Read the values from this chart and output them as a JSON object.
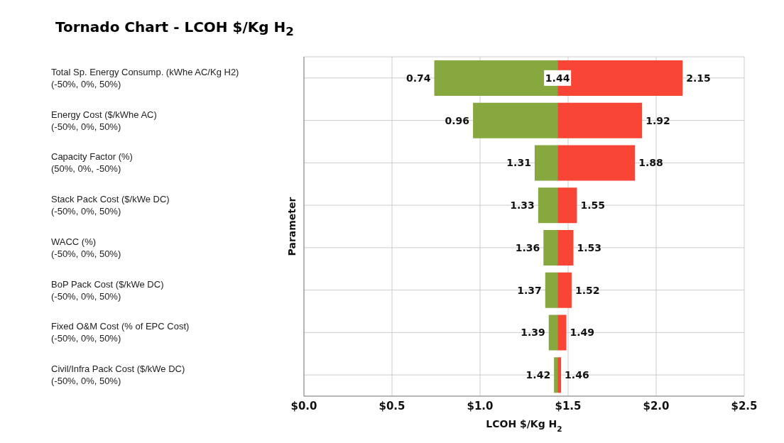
{
  "chart_data": {
    "type": "bar",
    "orientation": "horizontal",
    "title": "Tornado Chart  -  LCOH $/Kg H$_{2}$",
    "xlabel": "LCOH $/Kg H$_{2}$",
    "ylabel": "Parameter",
    "categories": [
      "Total Sp. Energy Consump. (kWhe AC/Kg H2)\n(-50%, 0%, 50%)",
      "Energy Cost ($/kWhe AC)\n(-50%, 0%, 50%)",
      "Capacity Factor (%)\n(50%, 0%, -50%)",
      "Stack Pack Cost ($/kWe DC)\n(-50%, 0%, 50%)",
      "WACC (%)\n(-50%, 0%, 50%)",
      "BoP Pack Cost ($/kWe DC)\n(-50%, 0%, 50%)",
      "Fixed O&M Cost (% of EPC Cost)\n(-50%, 0%, 50%)",
      "Civil/Infra Pack Cost ($/kWe DC)\n(-50%, 0%, 50%)"
    ],
    "series": [
      {
        "color": "#86a83f",
        "base": [
          0.74,
          0.96,
          1.31,
          1.33,
          1.36,
          1.37,
          1.39,
          1.42
        ],
        "values": [
          0.7,
          0.48,
          0.13,
          0.11,
          0.08,
          0.07,
          0.05,
          0.02
        ]
      },
      {
        "color": "#f84535",
        "base": [
          1.44,
          1.44,
          1.44,
          1.44,
          1.44,
          1.44,
          1.44,
          1.44
        ],
        "values": [
          0.71,
          0.48,
          0.44,
          0.11,
          0.09,
          0.08,
          0.05,
          0.02
        ]
      }
    ],
    "annotations": [
      {
        "text": "1.44",
        "x": 1.44,
        "y": "Total Sp. Energy Consump. (kWhe AC/Kg H2)\n(-50%, 0%, 50%)"
      },
      {
        "text": "0.74",
        "x": 0.74,
        "y": "Total Sp. Energy Consump. (kWhe AC/Kg H2)\n(-50%, 0%, 50%)"
      },
      {
        "text": "2.15",
        "x": 2.15,
        "y": "Total Sp. Energy Consump. (kWhe AC/Kg H2)\n(-50%, 0%, 50%)"
      },
      {
        "text": "0.96",
        "x": 0.96,
        "y": "Energy Cost ($/kWhe AC)\n(-50%, 0%, 50%)"
      },
      {
        "text": "1.92",
        "x": 1.92,
        "y": "Energy Cost ($/kWhe AC)\n(-50%, 0%, 50%)"
      },
      {
        "text": "1.31",
        "x": 1.31,
        "y": "Capacity Factor (%)\n(50%, 0%, -50%)"
      },
      {
        "text": "1.88",
        "x": 1.88,
        "y": "Capacity Factor (%)\n(50%, 0%, -50%)"
      },
      {
        "text": "1.33",
        "x": 1.33,
        "y": "Stack Pack Cost ($/kWe DC)\n(-50%, 0%, 50%)"
      },
      {
        "text": "1.55",
        "x": 1.55,
        "y": "Stack Pack Cost ($/kWe DC)\n(-50%, 0%, 50%)"
      },
      {
        "text": "1.36",
        "x": 1.36,
        "y": "WACC (%)\n(-50%, 0%, 50%)"
      },
      {
        "text": "1.53",
        "x": 1.53,
        "y": "WACC (%)\n(-50%, 0%, 50%)"
      },
      {
        "text": "1.37",
        "x": 1.37,
        "y": "BoP Pack Cost ($/kWe DC)\n(-50%, 0%, 50%)"
      },
      {
        "text": "1.52",
        "x": 1.52,
        "y": "BoP Pack Cost ($/kWe DC)\n(-50%, 0%, 50%)"
      },
      {
        "text": "1.39",
        "x": 1.39,
        "y": "Fixed O&M Cost (% of EPC Cost)\n(-50%, 0%, 50%)"
      },
      {
        "text": "1.49",
        "x": 1.49,
        "y": "Fixed O&M Cost (% of EPC Cost)\n(-50%, 0%, 50%)"
      },
      {
        "text": "1.42",
        "x": 1.42,
        "y": "Civil/Infra Pack Cost ($/kWe DC)\n(-50%, 0%, 50%)"
      },
      {
        "text": "1.46",
        "x": 1.46,
        "y": "Civil/Infra Pack Cost ($/kWe DC)\n(-50%, 0%, 50%)"
      }
    ],
    "xlim": [
      0,
      2.5
    ],
    "xticks": [
      {
        "value": 0,
        "label": "$0.0"
      },
      {
        "value": 0.5,
        "label": "$0.5"
      },
      {
        "value": 1,
        "label": "$1.0"
      },
      {
        "value": 1.5,
        "label": "$1.5"
      },
      {
        "value": 2,
        "label": "$2.0"
      },
      {
        "value": 2.5,
        "label": "$2.5"
      }
    ],
    "grid": true
  }
}
